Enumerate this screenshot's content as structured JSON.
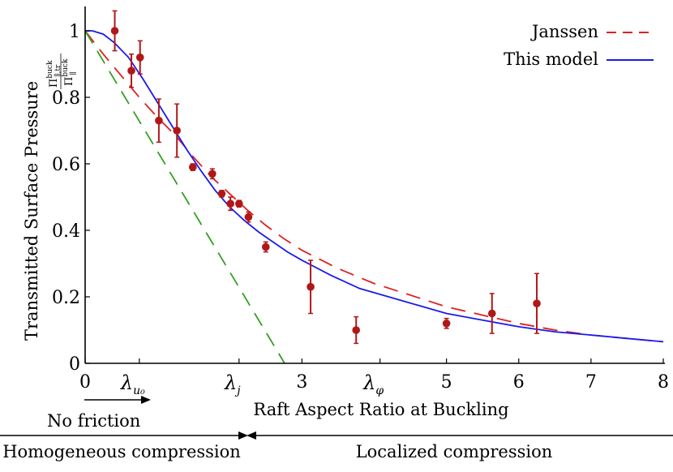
{
  "chart_data": {
    "type": "scatter",
    "xlabel": "Raft Aspect Ratio at Buckling",
    "ylabel": "Transmitted Surface Pressure",
    "ylabel_fraction": {
      "numerator": "Π",
      "numerator_sup": "buck",
      "numerator_sub": "∥,tr",
      "denominator": "Π",
      "denominator_sup": "buck",
      "denominator_sub": "∥"
    },
    "xlim": [
      0,
      8
    ],
    "ylim": [
      0,
      1.05
    ],
    "xticks": [
      {
        "value": 0,
        "label": "0"
      },
      {
        "value": 3,
        "label": "3"
      },
      {
        "value": 5,
        "label": "5"
      },
      {
        "value": 6,
        "label": "6"
      },
      {
        "value": 7,
        "label": "7"
      },
      {
        "value": 8,
        "label": "8"
      }
    ],
    "yticks": [
      {
        "value": 0,
        "label": "0"
      },
      {
        "value": 0.2,
        "label": "0.2"
      },
      {
        "value": 0.4,
        "label": "0.4"
      },
      {
        "value": 0.6,
        "label": "0.6"
      },
      {
        "value": 0.8,
        "label": "0.8"
      },
      {
        "value": 1,
        "label": "1"
      }
    ],
    "special_ticks": [
      {
        "value": 0.75,
        "symbol": "λ",
        "subscript": "u₀"
      },
      {
        "value": 2.13,
        "symbol": "λ",
        "subscript": "j"
      },
      {
        "value": 4.08,
        "symbol": "λ",
        "subscript": "φ"
      }
    ],
    "points": [
      {
        "x": 0.41,
        "y": 1.0,
        "err": 0.06
      },
      {
        "x": 0.64,
        "y": 0.88,
        "err": 0.05
      },
      {
        "x": 0.76,
        "y": 0.92,
        "err": 0.05
      },
      {
        "x": 1.02,
        "y": 0.73,
        "err": 0.065
      },
      {
        "x": 1.27,
        "y": 0.7,
        "err": 0.08
      },
      {
        "x": 1.49,
        "y": 0.59,
        "err": 0.01
      },
      {
        "x": 1.76,
        "y": 0.57,
        "err": 0.015
      },
      {
        "x": 1.89,
        "y": 0.51,
        "err": 0.01
      },
      {
        "x": 2.01,
        "y": 0.48,
        "err": 0.02
      },
      {
        "x": 2.13,
        "y": 0.48,
        "err": 0.01
      },
      {
        "x": 2.26,
        "y": 0.44,
        "err": 0.015
      },
      {
        "x": 2.5,
        "y": 0.35,
        "err": 0.015
      },
      {
        "x": 3.12,
        "y": 0.23,
        "err": 0.08
      },
      {
        "x": 3.75,
        "y": 0.1,
        "err": 0.04
      },
      {
        "x": 5.0,
        "y": 0.12,
        "err": 0.015
      },
      {
        "x": 5.63,
        "y": 0.15,
        "err": 0.06
      },
      {
        "x": 6.25,
        "y": 0.18,
        "err": 0.09
      }
    ],
    "series": [
      {
        "name": "Janssen",
        "color": "#e02020",
        "style": "dashed",
        "x": [
          0,
          0.25,
          0.5,
          0.75,
          1.0,
          1.25,
          1.5,
          1.75,
          2.0,
          2.25,
          2.5,
          2.75,
          3.0,
          3.5,
          4.0,
          4.5,
          5.0,
          5.5,
          6.0,
          6.5,
          7.0,
          7.5,
          8.0
        ],
        "y": [
          1.0,
          0.93,
          0.865,
          0.8,
          0.74,
          0.685,
          0.62,
          0.56,
          0.51,
          0.46,
          0.415,
          0.375,
          0.34,
          0.285,
          0.24,
          0.205,
          0.17,
          0.145,
          0.12,
          0.1,
          0.085,
          0.075,
          0.065
        ]
      },
      {
        "name": "This model",
        "color": "#1a1aee",
        "style": "solid",
        "x": [
          0,
          0.1,
          0.25,
          0.4,
          0.6,
          0.8,
          1.0,
          1.2,
          1.4,
          1.6,
          1.8,
          2.0,
          2.2,
          2.4,
          2.6,
          2.8,
          3.0,
          3.4,
          3.8,
          4.2,
          4.6,
          5.0,
          5.5,
          6.0,
          6.5,
          7.0,
          7.5,
          8.0
        ],
        "y": [
          1.0,
          1.0,
          0.99,
          0.965,
          0.92,
          0.855,
          0.785,
          0.715,
          0.645,
          0.58,
          0.52,
          0.47,
          0.43,
          0.395,
          0.365,
          0.335,
          0.31,
          0.265,
          0.225,
          0.2,
          0.175,
          0.15,
          0.13,
          0.11,
          0.095,
          0.085,
          0.075,
          0.065
        ]
      },
      {
        "name": "",
        "color": "#33a020",
        "style": "dashed",
        "x": [
          0,
          2.76
        ],
        "y": [
          1.0,
          0.0
        ]
      }
    ],
    "legend": {
      "position": "top-right",
      "entries": [
        "Janssen",
        "This model"
      ]
    },
    "grid": false,
    "annotations": {
      "no_friction": "No friction",
      "homogeneous": "Homogeneous compression",
      "localized": "Localized compression"
    },
    "colors": {
      "points": "#b01818",
      "axis": "#000000"
    }
  }
}
